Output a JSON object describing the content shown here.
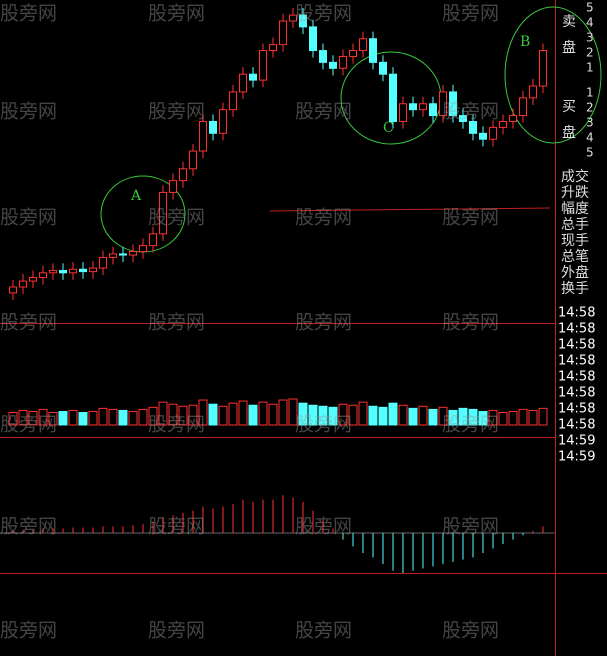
{
  "chart_data": {
    "type": "candlestick",
    "open": [
      55,
      60,
      65,
      68,
      72,
      74,
      72,
      75,
      73,
      76,
      85,
      88,
      87,
      90,
      95,
      105,
      140,
      150,
      160,
      175,
      200,
      190,
      210,
      225,
      240,
      235,
      260,
      265,
      285,
      290,
      280,
      260,
      250,
      245,
      255,
      260,
      270,
      250,
      240,
      200,
      215,
      210,
      215,
      205,
      225,
      205,
      200,
      190,
      185,
      195,
      200,
      205,
      220,
      230
    ],
    "high": [
      66,
      71,
      74,
      78,
      80,
      80,
      81,
      81,
      82,
      91,
      94,
      94,
      96,
      101,
      111,
      146,
      156,
      166,
      181,
      206,
      206,
      216,
      231,
      246,
      246,
      266,
      271,
      291,
      296,
      296,
      286,
      266,
      256,
      261,
      266,
      276,
      276,
      256,
      246,
      221,
      221,
      221,
      221,
      231,
      231,
      211,
      206,
      196,
      201,
      206,
      211,
      226,
      236,
      266
    ],
    "low": [
      49,
      54,
      59,
      62,
      66,
      66,
      66,
      67,
      67,
      70,
      79,
      81,
      81,
      84,
      89,
      99,
      134,
      144,
      154,
      169,
      184,
      184,
      204,
      219,
      229,
      229,
      254,
      259,
      279,
      274,
      254,
      244,
      239,
      239,
      249,
      254,
      244,
      234,
      194,
      194,
      204,
      204,
      199,
      199,
      199,
      194,
      184,
      179,
      179,
      189,
      194,
      199,
      214,
      224
    ],
    "close": [
      60,
      65,
      68,
      72,
      74,
      72,
      75,
      73,
      76,
      85,
      88,
      87,
      90,
      95,
      105,
      140,
      150,
      160,
      175,
      200,
      190,
      210,
      225,
      240,
      235,
      260,
      265,
      285,
      290,
      280,
      260,
      250,
      245,
      255,
      260,
      270,
      250,
      240,
      200,
      215,
      210,
      215,
      205,
      225,
      205,
      200,
      190,
      185,
      195,
      200,
      205,
      220,
      230,
      260
    ],
    "volume": [
      12,
      14,
      13,
      15,
      12,
      13,
      14,
      12,
      13,
      16,
      15,
      14,
      13,
      15,
      17,
      22,
      20,
      18,
      19,
      24,
      20,
      18,
      21,
      23,
      19,
      22,
      20,
      24,
      25,
      21,
      19,
      18,
      17,
      20,
      19,
      22,
      18,
      17,
      21,
      19,
      16,
      18,
      15,
      17,
      14,
      16,
      15,
      13,
      14,
      12,
      13,
      15,
      14,
      16
    ],
    "macd": [
      2,
      3,
      3,
      4,
      4,
      4,
      5,
      5,
      5,
      6,
      6,
      6,
      7,
      8,
      10,
      14,
      16,
      18,
      20,
      24,
      22,
      24,
      26,
      30,
      28,
      30,
      30,
      34,
      32,
      28,
      20,
      12,
      4,
      -6,
      -12,
      -18,
      -22,
      -28,
      -34,
      -36,
      -34,
      -32,
      -30,
      -28,
      -26,
      -24,
      -22,
      -18,
      -14,
      -10,
      -6,
      -2,
      2,
      6
    ],
    "annotations": [
      "A",
      "C",
      "B"
    ],
    "up_color": "#ff3030",
    "down_color": "#54ffff"
  },
  "side_panel": {
    "sell_label": "卖盘",
    "sell_levels": [
      5,
      4,
      3,
      2,
      1
    ],
    "buy_label": "买盘",
    "buy_levels": [
      1,
      2,
      3,
      4,
      5
    ],
    "fields": [
      "成交",
      "升跌",
      "幅度",
      "总手",
      "现手",
      "总笔",
      "外盘",
      "换手"
    ],
    "times": [
      "14:58",
      "14:58",
      "14:58",
      "14:58",
      "14:58",
      "14:58",
      "14:58",
      "14:58",
      "14:59",
      "14:59"
    ]
  },
  "watermark": "股旁网"
}
